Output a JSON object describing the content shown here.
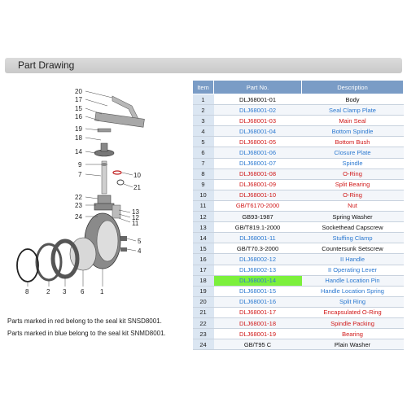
{
  "section_title": "Part Drawing",
  "table": {
    "headers": [
      "Item",
      "Part No.",
      "Description"
    ],
    "rows": [
      {
        "item": "1",
        "part_no": "DLJ68001-01",
        "desc": "Body",
        "color": "black"
      },
      {
        "item": "2",
        "part_no": "DLJ68001-02",
        "desc": "Seal Clamp Plate",
        "color": "blue"
      },
      {
        "item": "3",
        "part_no": "DLJ68001-03",
        "desc": "Main Seal",
        "color": "red"
      },
      {
        "item": "4",
        "part_no": "DLJ68001-04",
        "desc": "Bottom Spindle",
        "color": "blue"
      },
      {
        "item": "5",
        "part_no": "DLJ68001-05",
        "desc": "Bottom Bush",
        "color": "red"
      },
      {
        "item": "6",
        "part_no": "DLJ68001-06",
        "desc": "Closure Plate",
        "color": "blue"
      },
      {
        "item": "7",
        "part_no": "DLJ68001-07",
        "desc": "Spindle",
        "color": "blue"
      },
      {
        "item": "8",
        "part_no": "DLJ68001-08",
        "desc": "O-Ring",
        "color": "red"
      },
      {
        "item": "9",
        "part_no": "DLJ68001-09",
        "desc": "Split Bearing",
        "color": "red"
      },
      {
        "item": "10",
        "part_no": "DLJ68001-10",
        "desc": "O-Ring",
        "color": "red"
      },
      {
        "item": "11",
        "part_no": "GB/T6170-2000",
        "desc": "Nut",
        "color": "red"
      },
      {
        "item": "12",
        "part_no": "GB93-1987",
        "desc": "Spring Washer",
        "color": "black"
      },
      {
        "item": "13",
        "part_no": "GB/T819.1-2000",
        "desc": "Sockethead Capscrew",
        "color": "black"
      },
      {
        "item": "14",
        "part_no": "DLJ68001-11",
        "desc": "Stuffing Clamp",
        "color": "blue"
      },
      {
        "item": "15",
        "part_no": "GB/T70.3-2000",
        "desc": "Countersunk Setscrew",
        "color": "black"
      },
      {
        "item": "16",
        "part_no": "DLJ68002-12",
        "desc": "II Handle",
        "color": "blue"
      },
      {
        "item": "17",
        "part_no": "DLJ68002-13",
        "desc": "II Operating Lever",
        "color": "blue"
      },
      {
        "item": "18",
        "part_no": "DLJ68001-14",
        "desc": "Handle Location Pin",
        "color": "blue",
        "highlight": true
      },
      {
        "item": "19",
        "part_no": "DLJ68001-15",
        "desc": "Handle Location Spring",
        "color": "blue"
      },
      {
        "item": "20",
        "part_no": "DLJ68001-16",
        "desc": "Split Ring",
        "color": "blue"
      },
      {
        "item": "21",
        "part_no": "DLJ68001-17",
        "desc": "Encapsulated O-Ring",
        "color": "red"
      },
      {
        "item": "22",
        "part_no": "DLJ68001-18",
        "desc": "Spindle Packing",
        "color": "red"
      },
      {
        "item": "23",
        "part_no": "DLJ68001-19",
        "desc": "Bearing",
        "color": "red"
      },
      {
        "item": "24",
        "part_no": "GB/T95 C",
        "desc": "Plain Washer",
        "color": "black"
      }
    ]
  },
  "notes": [
    "Parts marked in red  belong to the seal kit SNSD8001.",
    "Parts marked in blue  belong to the seal kit SNMD8001."
  ],
  "drawing_labels": {
    "l20": "20",
    "l17": "17",
    "l15": "15",
    "l16": "16",
    "l19": "19",
    "l18": "18",
    "l14": "14",
    "l9": "9",
    "l7": "7",
    "l10": "10",
    "l21": "21",
    "l22": "22",
    "l23": "23",
    "l24": "24",
    "l13": "13",
    "l12": "12",
    "l11": "11",
    "l5": "5",
    "l4": "4",
    "l8": "8",
    "l2": "2",
    "l3": "3",
    "l6": "6",
    "l1": "1"
  }
}
